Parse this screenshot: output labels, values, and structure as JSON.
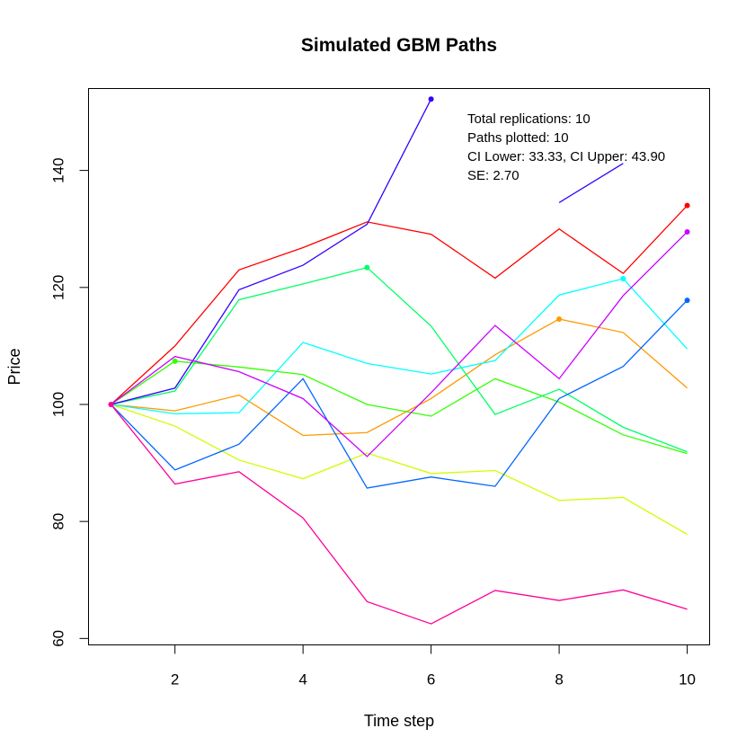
{
  "chart_data": {
    "type": "line",
    "title": "Simulated GBM Paths",
    "xlabel": "Time step",
    "ylabel": "Price",
    "xlim": [
      0.65,
      10.35
    ],
    "ylim": [
      58.9,
      154.0
    ],
    "xticks": [
      2,
      4,
      6,
      8,
      10
    ],
    "yticks": [
      60,
      80,
      100,
      120,
      140
    ],
    "grid": false,
    "annotations": [
      "Total replications: 10",
      "Paths plotted: 10",
      "CI Lower: 33.33, CI Upper: 43.90",
      "SE: 2.70"
    ],
    "x": [
      1,
      2,
      3,
      4,
      5,
      6,
      7,
      8,
      9,
      10
    ],
    "series": [
      {
        "color": "#FF0000",
        "values": [
          100,
          110.0,
          123.0,
          126.8,
          131.2,
          129.1,
          121.6,
          130.0,
          122.4,
          134.0
        ],
        "markers": [
          10
        ]
      },
      {
        "color": "#FF9900",
        "values": [
          100,
          98.9,
          101.6,
          94.7,
          95.2,
          101.0,
          108.5,
          114.6,
          112.3,
          102.8
        ],
        "markers": [
          8
        ]
      },
      {
        "color": "#CCFF00",
        "values": [
          100,
          96.3,
          90.5,
          87.3,
          91.7,
          88.2,
          88.7,
          83.6,
          84.1,
          77.8
        ],
        "markers": []
      },
      {
        "color": "#33FF00",
        "values": [
          100,
          107.4,
          106.4,
          105.1,
          100.0,
          98.0,
          104.4,
          100.4,
          94.8,
          91.6
        ],
        "markers": [
          2
        ]
      },
      {
        "color": "#00FF66",
        "values": [
          100,
          102.3,
          117.9,
          120.6,
          123.4,
          113.4,
          98.3,
          102.6,
          96.1,
          91.9
        ],
        "markers": [
          5
        ]
      },
      {
        "color": "#00FFFF",
        "values": [
          100,
          98.4,
          98.6,
          110.6,
          107.0,
          105.2,
          107.5,
          118.7,
          121.5,
          109.5
        ],
        "markers": [
          9
        ]
      },
      {
        "color": "#0066FF",
        "values": [
          100,
          88.8,
          93.2,
          104.4,
          85.7,
          87.6,
          86.0,
          101.0,
          106.5,
          117.8
        ],
        "markers": [
          10
        ]
      },
      {
        "color": "#3300FF",
        "values": [
          100,
          102.8,
          119.6,
          123.8,
          130.8,
          152.2,
          null,
          134.5,
          141.2,
          null
        ],
        "markers": [
          6
        ]
      },
      {
        "color": "#CC00FF",
        "values": [
          100,
          108.2,
          105.6,
          101.0,
          91.1,
          102.0,
          113.5,
          104.4,
          118.6,
          129.5
        ],
        "markers": [
          10
        ]
      },
      {
        "color": "#FF0099",
        "values": [
          100,
          86.4,
          88.5,
          80.6,
          66.3,
          62.5,
          68.2,
          66.5,
          68.3,
          65.0
        ],
        "markers": [
          1
        ]
      }
    ]
  }
}
